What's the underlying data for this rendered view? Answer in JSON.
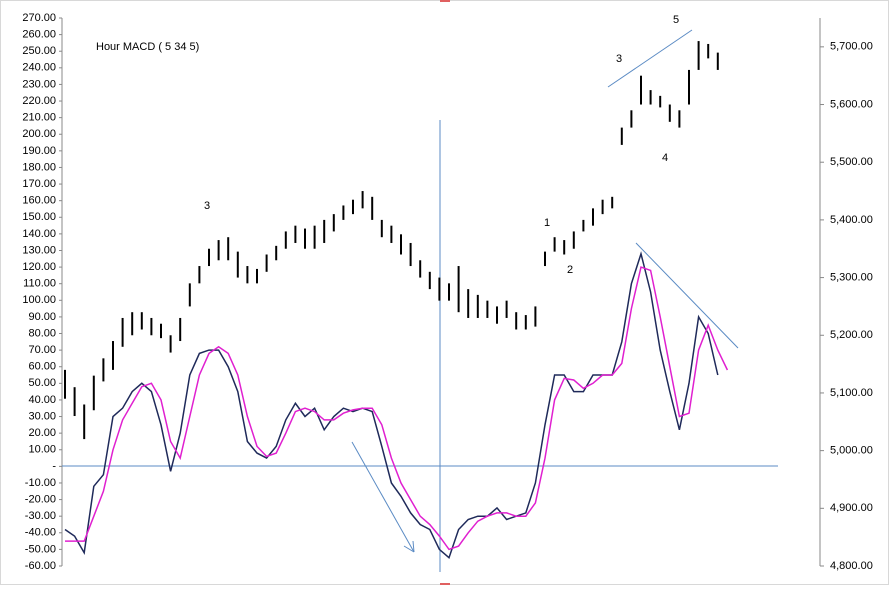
{
  "chart_data": {
    "type": "line",
    "title": "Hour MACD ( 5 34 5)",
    "annotations": [
      {
        "text": "3"
      },
      {
        "text": "5"
      },
      {
        "text": "3"
      },
      {
        "text": "1"
      },
      {
        "text": "2"
      },
      {
        "text": "4"
      }
    ],
    "ylim": [
      -60,
      270
    ],
    "yticks": [
      {
        "value": 270,
        "label": "270.00"
      },
      {
        "value": 260,
        "label": "260.00"
      },
      {
        "value": 250,
        "label": "250.00"
      },
      {
        "value": 240,
        "label": "240.00"
      },
      {
        "value": 230,
        "label": "230.00"
      },
      {
        "value": 220,
        "label": "220.00"
      },
      {
        "value": 210,
        "label": "210.00"
      },
      {
        "value": 200,
        "label": "200.00"
      },
      {
        "value": 190,
        "label": "190.00"
      },
      {
        "value": 180,
        "label": "180.00"
      },
      {
        "value": 170,
        "label": "170.00"
      },
      {
        "value": 160,
        "label": "160.00"
      },
      {
        "value": 150,
        "label": "150.00"
      },
      {
        "value": 140,
        "label": "140.00"
      },
      {
        "value": 130,
        "label": "130.00"
      },
      {
        "value": 120,
        "label": "120.00"
      },
      {
        "value": 110,
        "label": "110.00"
      },
      {
        "value": 100,
        "label": "100.00"
      },
      {
        "value": 90,
        "label": "90.00"
      },
      {
        "value": 80,
        "label": "80.00"
      },
      {
        "value": 70,
        "label": "70.00"
      },
      {
        "value": 60,
        "label": "60.00"
      },
      {
        "value": 50,
        "label": "50.00"
      },
      {
        "value": 40,
        "label": "40.00"
      },
      {
        "value": 30,
        "label": "30.00"
      },
      {
        "value": 20,
        "label": "20.00"
      },
      {
        "value": 10,
        "label": "10.00"
      },
      {
        "value": 0,
        "label": "-"
      },
      {
        "value": -10,
        "label": "-10.00"
      },
      {
        "value": -20,
        "label": "-20.00"
      },
      {
        "value": -30,
        "label": "-30.00"
      },
      {
        "value": -40,
        "label": "-40.00"
      },
      {
        "value": -50,
        "label": "-50.00"
      },
      {
        "value": -60,
        "label": "-60.00"
      }
    ],
    "y2lim": [
      4800,
      5750
    ],
    "y2ticks": [
      {
        "value": 5700,
        "label": "5,700.00"
      },
      {
        "value": 5600,
        "label": "5,600.00"
      },
      {
        "value": 5500,
        "label": "5,500.00"
      },
      {
        "value": 5400,
        "label": "5,400.00"
      },
      {
        "value": 5300,
        "label": "5,300.00"
      },
      {
        "value": 5200,
        "label": "5,200.00"
      },
      {
        "value": 5100,
        "label": "5,100.00"
      },
      {
        "value": 5000,
        "label": "5,000.00"
      },
      {
        "value": 4900,
        "label": "4,900.00"
      },
      {
        "value": 4800,
        "label": "4,800.00"
      }
    ],
    "series": [
      {
        "color": "#1f2a5a",
        "values": [
          -38,
          -42,
          -52,
          -12,
          -5,
          30,
          35,
          45,
          50,
          45,
          25,
          -3,
          20,
          55,
          68,
          70,
          70,
          60,
          45,
          15,
          8,
          5,
          12,
          28,
          38,
          30,
          35,
          22,
          30,
          35,
          33,
          35,
          33,
          12,
          -10,
          -18,
          -28,
          -35,
          -38,
          -50,
          -55,
          -38,
          -32,
          -30,
          -30,
          -25,
          -32,
          -30,
          -28,
          -10,
          25,
          55,
          55,
          45,
          45,
          55,
          55,
          55,
          75,
          110,
          128,
          105,
          70,
          45,
          22,
          50,
          90,
          80,
          55,
          null
        ]
      },
      {
        "color": "#e020d0",
        "values": [
          -45,
          -45,
          -45,
          -30,
          -15,
          10,
          28,
          38,
          48,
          50,
          40,
          15,
          5,
          30,
          55,
          68,
          72,
          68,
          55,
          30,
          12,
          6,
          8,
          20,
          33,
          35,
          33,
          28,
          28,
          32,
          34,
          35,
          35,
          25,
          5,
          -10,
          -20,
          -30,
          -35,
          -42,
          -50,
          -48,
          -40,
          -33,
          -30,
          -28,
          -28,
          -30,
          -30,
          -22,
          5,
          40,
          53,
          52,
          47,
          50,
          55,
          55,
          62,
          95,
          120,
          118,
          90,
          60,
          30,
          32,
          70,
          85,
          70,
          58
        ]
      },
      {
        "color": "#000000",
        "axis": "y2",
        "high": [
          5140,
          5110,
          5080,
          5130,
          5160,
          5190,
          5230,
          5240,
          5240,
          5230,
          5220,
          5200,
          5230,
          5290,
          5320,
          5350,
          5365,
          5370,
          5345,
          5320,
          5315,
          5340,
          5355,
          5380,
          5390,
          5385,
          5390,
          5400,
          5410,
          5425,
          5435,
          5450,
          5440,
          5400,
          5390,
          5375,
          5360,
          5330,
          5310,
          5300,
          5290,
          5320,
          5280,
          5270,
          5260,
          5250,
          5260,
          5240,
          5235,
          5250,
          5345,
          5370,
          5365,
          5380,
          5400,
          5420,
          5435,
          5440,
          5560,
          5590,
          5650,
          5625,
          5615,
          5600,
          5590,
          5660,
          5710,
          5705,
          5690,
          null
        ],
        "low": [
          5090,
          5060,
          5020,
          5070,
          5120,
          5140,
          5180,
          5200,
          5210,
          5200,
          5195,
          5170,
          5190,
          5250,
          5290,
          5320,
          5330,
          5330,
          5300,
          5290,
          5290,
          5310,
          5330,
          5350,
          5360,
          5350,
          5350,
          5360,
          5380,
          5400,
          5410,
          5420,
          5400,
          5370,
          5360,
          5340,
          5320,
          5300,
          5280,
          5260,
          5260,
          5240,
          5230,
          5230,
          5230,
          5220,
          5230,
          5210,
          5210,
          5215,
          5320,
          5345,
          5340,
          5350,
          5380,
          5390,
          5410,
          5420,
          5530,
          5560,
          5600,
          5600,
          5595,
          5570,
          5560,
          5600,
          5660,
          5680,
          5660,
          null
        ]
      }
    ]
  }
}
